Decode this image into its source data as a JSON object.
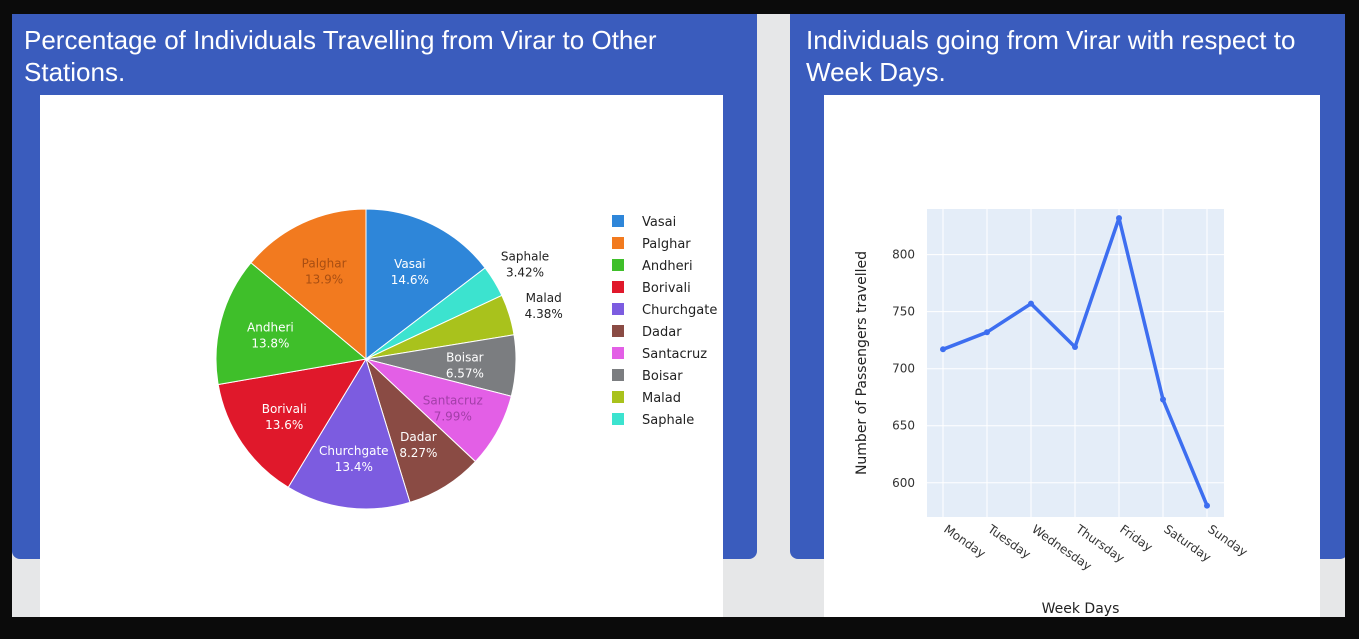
{
  "left_panel": {
    "title_line1": "Percentage of Individuals Travelling from Virar to Other",
    "title_line2": "Stations."
  },
  "right_panel": {
    "title_line1": "Individuals going from Virar with respect to",
    "title_line2": "Week Days."
  },
  "colors": {
    "panel_blue": "#3a5cbd",
    "line_blue": "#3d6ef0",
    "plot_bg": "#e4edf8"
  },
  "chart_data": [
    {
      "type": "pie",
      "title": "",
      "slices": [
        {
          "label": "Vasai",
          "percent": 14.6,
          "display": "14.6%",
          "color": "#2e86d9"
        },
        {
          "label": "Saphale",
          "percent": 3.42,
          "display": "3.42%",
          "color": "#3ce3cf"
        },
        {
          "label": "Malad",
          "percent": 4.38,
          "display": "4.38%",
          "color": "#a9c21c"
        },
        {
          "label": "Boisar",
          "percent": 6.57,
          "display": "6.57%",
          "color": "#7b7d80"
        },
        {
          "label": "Santacruz",
          "percent": 7.99,
          "display": "7.99%",
          "color": "#e35fe6"
        },
        {
          "label": "Dadar",
          "percent": 8.27,
          "display": "8.27%",
          "color": "#8a4b44"
        },
        {
          "label": "Churchgate",
          "percent": 13.4,
          "display": "13.4%",
          "color": "#7c5ce0"
        },
        {
          "label": "Borivali",
          "percent": 13.6,
          "display": "13.6%",
          "color": "#e0182b"
        },
        {
          "label": "Andheri",
          "percent": 13.8,
          "display": "13.8%",
          "color": "#3fbf2a"
        },
        {
          "label": "Palghar",
          "percent": 13.9,
          "display": "13.9%",
          "color": "#f27a1f"
        }
      ],
      "legend_order": [
        "Vasai",
        "Palghar",
        "Andheri",
        "Borivali",
        "Churchgate",
        "Dadar",
        "Santacruz",
        "Boisar",
        "Malad",
        "Saphale"
      ],
      "legend_position": "right"
    },
    {
      "type": "line",
      "title": "",
      "xlabel": "Week Days",
      "ylabel": "Number of Passengers travelled",
      "categories": [
        "Monday",
        "Tuesday",
        "Wednesday",
        "Thursday",
        "Friday",
        "Saturday",
        "Sunday"
      ],
      "values": [
        717,
        732,
        757,
        719,
        832,
        673,
        580
      ],
      "ylim": [
        570,
        840
      ],
      "yticks": [
        600,
        650,
        700,
        750,
        800
      ],
      "grid": true
    }
  ]
}
